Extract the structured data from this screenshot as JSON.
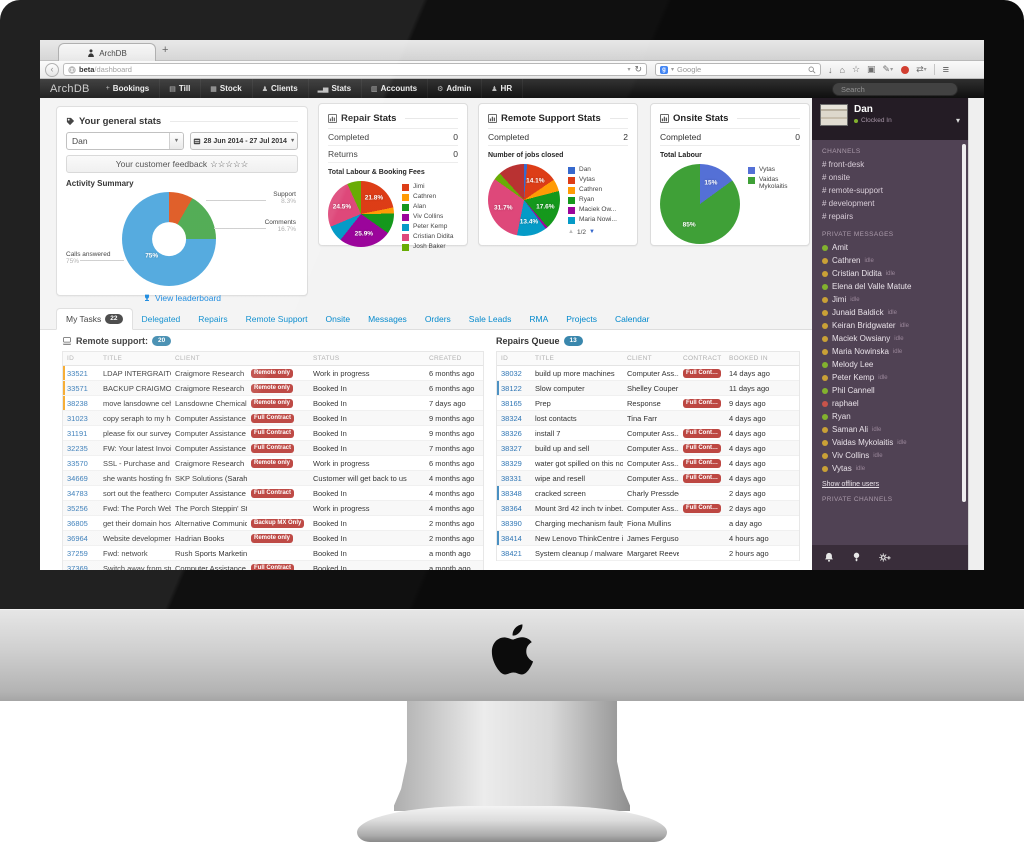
{
  "browser": {
    "tab_title": "ArchDB",
    "new_tab": "+",
    "url_domain": "beta",
    "url_path": "/dashboard",
    "search_engine": "Google"
  },
  "app_nav": {
    "brand": "ArchDB",
    "search_placeholder": "Search",
    "items": [
      {
        "label": "Bookings",
        "icon": "plus-icon",
        "glyph": "+"
      },
      {
        "label": "Till",
        "icon": "till-icon",
        "glyph": "▤"
      },
      {
        "label": "Stock",
        "icon": "stock-icon",
        "glyph": "▦"
      },
      {
        "label": "Clients",
        "icon": "clients-icon",
        "glyph": "♟"
      },
      {
        "label": "Stats",
        "icon": "stats-icon",
        "glyph": "▂▅"
      },
      {
        "label": "Accounts",
        "icon": "accounts-icon",
        "glyph": "▥"
      },
      {
        "label": "Admin",
        "icon": "admin-gears-icon",
        "glyph": "⚙"
      },
      {
        "label": "HR",
        "icon": "hr-icon",
        "glyph": "♟"
      }
    ]
  },
  "general_stats": {
    "title": "Your general stats",
    "user": "Dan",
    "date_range": "28 Jun 2014 - 27 Jul 2014",
    "feedback_label": "Your customer feedback",
    "stars": "☆☆☆☆☆",
    "activity_title": "Activity Summary",
    "leaderboard": "View leaderboard"
  },
  "repair_stats": {
    "title": "Repair Stats",
    "rows": [
      {
        "label": "Completed",
        "value": "0"
      },
      {
        "label": "Returns",
        "value": "0"
      }
    ],
    "chart_title": "Total Labour & Booking Fees"
  },
  "remote_stats": {
    "title": "Remote Support Stats",
    "rows": [
      {
        "label": "Completed",
        "value": "2"
      }
    ],
    "chart_title": "Number of jobs closed",
    "pagination": "1/2"
  },
  "onsite_stats": {
    "title": "Onsite Stats",
    "rows": [
      {
        "label": "Completed",
        "value": "0"
      }
    ],
    "chart_title": "Total Labour"
  },
  "chart_data": [
    {
      "id": "activity_summary",
      "type": "donut",
      "title": "Activity Summary",
      "slices": [
        {
          "label": "Support",
          "value": 8.3,
          "pct": "8.3%",
          "inner": "",
          "color": "#dd5016"
        },
        {
          "label": "Comments",
          "value": 16.7,
          "pct": "16.7%",
          "inner": "",
          "color": "#43a546"
        },
        {
          "label": "Calls answered",
          "value": 75,
          "pct": "75%",
          "inner": "75%",
          "color": "#45a3dc"
        }
      ]
    },
    {
      "id": "repair_fees",
      "type": "pie",
      "title": "Total Labour & Booking Fees",
      "slices": [
        {
          "label": "Jimi",
          "value": 21.8,
          "inner": "21.8%",
          "color": "#dc3912"
        },
        {
          "label": "Cathren",
          "value": 3.0,
          "inner": "",
          "color": "#ff9900"
        },
        {
          "label": "Alan",
          "value": 10.0,
          "inner": "",
          "color": "#109618"
        },
        {
          "label": "Viv Collins",
          "value": 25.9,
          "inner": "25.9%",
          "color": "#990099"
        },
        {
          "label": "Peter Kemp",
          "value": 8.0,
          "inner": "",
          "color": "#0099c6"
        },
        {
          "label": "Cristian Didita",
          "value": 24.5,
          "inner": "24.5%",
          "color": "#dd4477"
        },
        {
          "label": "Josh Baker",
          "value": 6.8,
          "inner": "",
          "color": "#66aa00"
        }
      ]
    },
    {
      "id": "remote_jobs_closed",
      "type": "pie",
      "title": "Number of jobs closed",
      "legend_visible_count": 6,
      "pagination": "1/2",
      "slices": [
        {
          "label": "Dan",
          "value": 1.4,
          "inner": "",
          "color": "#3366cc"
        },
        {
          "label": "Vytas",
          "value": 14.1,
          "inner": "14.1%",
          "color": "#dc3912"
        },
        {
          "label": "Cathren",
          "value": 5.5,
          "inner": "",
          "color": "#ff9900"
        },
        {
          "label": "Ryan",
          "value": 17.6,
          "inner": "17.6%",
          "color": "#109618"
        },
        {
          "label": "Maciek Ow...",
          "value": 1.1,
          "inner": "",
          "color": "#990099"
        },
        {
          "label": "Maria Nowi...",
          "value": 13.4,
          "inner": "13.4%",
          "color": "#0099c6"
        },
        {
          "label": "",
          "value": 31.7,
          "inner": "31.7%",
          "color": "#dd4477"
        },
        {
          "label": "",
          "value": 3.4,
          "inner": "",
          "color": "#66aa00"
        },
        {
          "label": "",
          "value": 11.8,
          "inner": "",
          "color": "#b82e2e"
        }
      ]
    },
    {
      "id": "onsite_labour",
      "type": "pie",
      "title": "Total Labour",
      "slices": [
        {
          "label": "Vytas",
          "value": 15,
          "inner": "15%",
          "color": "#5470d6"
        },
        {
          "label": "Vaidas Mykolaitis",
          "value": 85,
          "inner": "85%",
          "color": "#3fa037"
        }
      ]
    }
  ],
  "tabs": [
    {
      "label": "My Tasks",
      "badge": "22",
      "active": true
    },
    {
      "label": "Delegated"
    },
    {
      "label": "Repairs"
    },
    {
      "label": "Remote Support"
    },
    {
      "label": "Onsite"
    },
    {
      "label": "Messages"
    },
    {
      "label": "Orders"
    },
    {
      "label": "Sale Leads"
    },
    {
      "label": "RMA"
    },
    {
      "label": "Projects"
    },
    {
      "label": "Calendar"
    }
  ],
  "tables": {
    "remote_support": {
      "title": "Remote support:",
      "badge": "20",
      "columns": [
        "ID",
        "TITLE",
        "CLIENT",
        "",
        "STATUS",
        "CREATED"
      ],
      "rows": [
        {
          "id": "33521",
          "title": "LDAP INTERGRAITON",
          "client": "Craigmore Research",
          "badge": "Remote only",
          "status": "Work in progress",
          "created": "6 months ago",
          "accent": "orange"
        },
        {
          "id": "33571",
          "title": "BACKUP CRAIGMOR...",
          "client": "Craigmore Research",
          "badge": "Remote only",
          "status": "Booked In",
          "created": "6 months ago",
          "accent": "orange"
        },
        {
          "id": "38238",
          "title": "move lansdowne ceh...",
          "client": "Lansdowne Chemicals",
          "badge": "Remote only",
          "status": "Booked In",
          "created": "7 days ago",
          "accent": "orange"
        },
        {
          "id": "31023",
          "title": "copy seraph to my ho...",
          "client": "Computer Assistance",
          "badge": "Full Contract",
          "status": "Booked In",
          "created": "9 months ago"
        },
        {
          "id": "31191",
          "title": "please fix our survey ...",
          "client": "Computer Assistance",
          "badge": "Full Contract",
          "status": "Booked In",
          "created": "9 months ago"
        },
        {
          "id": "32235",
          "title": "FW: Your latest Invoic...",
          "client": "Computer Assistance",
          "badge": "Full Contract",
          "status": "Booked In",
          "created": "7 months ago"
        },
        {
          "id": "33570",
          "title": "SSL - Purchase and s...",
          "client": "Craigmore Research",
          "badge": "Remote only",
          "status": "Work in progress",
          "created": "6 months ago"
        },
        {
          "id": "34669",
          "title": "she wants hosting fro...",
          "client": "SKP Solutions (Sarah ...",
          "badge": "",
          "status": "Customer will get back to us",
          "created": "4 months ago"
        },
        {
          "id": "34783",
          "title": "sort out the feathercoi...",
          "client": "Computer Assistance",
          "badge": "Full Contract",
          "status": "Booked In",
          "created": "4 months ago"
        },
        {
          "id": "35256",
          "title": "Fwd: The Porch Webs...",
          "client": "The Porch Steppin' St...",
          "badge": "",
          "status": "Work in progress",
          "created": "4 months ago"
        },
        {
          "id": "36805",
          "title": "get their domain host...",
          "client": "Alternative Communic...",
          "badge": "Backup MX Only",
          "status": "Booked In",
          "created": "2 months ago"
        },
        {
          "id": "36964",
          "title": "Website development",
          "client": "Hadrian Books",
          "badge": "Remote only",
          "status": "Booked In",
          "created": "2 months ago"
        },
        {
          "id": "37259",
          "title": "Fwd: network",
          "client": "Rush Sports Marketin...",
          "badge": "",
          "status": "Booked In",
          "created": "a month ago"
        },
        {
          "id": "37369",
          "title": "Switch away from stri...",
          "client": "Computer Assistance",
          "badge": "Full Contract",
          "status": "Booked In",
          "created": "a month ago"
        },
        {
          "id": "",
          "title": "",
          "client": "",
          "badge": "Full Contract",
          "status": "",
          "created": ""
        }
      ]
    },
    "repairs_queue": {
      "title": "Repairs Queue",
      "badge": "13",
      "columns": [
        "ID",
        "TITLE",
        "CLIENT",
        "CONTRACT",
        "BOOKED IN"
      ],
      "rows": [
        {
          "id": "38032",
          "title": "build up more machines",
          "client": "Computer Ass...",
          "badge": "Full Contract",
          "created": "14 days ago"
        },
        {
          "id": "38122",
          "title": "Slow computer",
          "client": "Shelley Couper",
          "badge": "",
          "created": "11 days ago",
          "accent": "blue"
        },
        {
          "id": "38165",
          "title": "Prep",
          "client": "Response",
          "badge": "Full Contract",
          "created": "9 days ago"
        },
        {
          "id": "38324",
          "title": "lost contacts",
          "client": "Tina Farr",
          "badge": "",
          "created": "4 days ago"
        },
        {
          "id": "38326",
          "title": "install 7",
          "client": "Computer Ass...",
          "badge": "Full Contract",
          "created": "4 days ago"
        },
        {
          "id": "38327",
          "title": "build up and sell",
          "client": "Computer Ass...",
          "badge": "Full Contract",
          "created": "4 days ago"
        },
        {
          "id": "38329",
          "title": "water got spilled on this no...",
          "client": "Computer Ass...",
          "badge": "Full Contract",
          "created": "4 days ago"
        },
        {
          "id": "38331",
          "title": "wipe and resell",
          "client": "Computer Ass...",
          "badge": "Full Contract",
          "created": "4 days ago"
        },
        {
          "id": "38348",
          "title": "cracked screen",
          "client": "Charly Pressdee",
          "badge": "",
          "created": "2 days ago",
          "accent": "blue"
        },
        {
          "id": "38364",
          "title": "Mount 3rd 42 inch tv inbet...",
          "client": "Computer Ass...",
          "badge": "Full Contract",
          "created": "2 days ago"
        },
        {
          "id": "38390",
          "title": "Charging mechanism faulty",
          "client": "Fiona Mullins",
          "badge": "",
          "created": "a day ago"
        },
        {
          "id": "38414",
          "title": "New Lenovo ThinkCentre i...",
          "client": "James Ferguson",
          "badge": "",
          "created": "4 hours ago",
          "accent": "blue"
        },
        {
          "id": "38421",
          "title": "System cleanup / malware ...",
          "client": "Margaret Reeves",
          "badge": "",
          "created": "2 hours ago"
        }
      ]
    }
  },
  "sidebar": {
    "user": {
      "name": "Dan",
      "status": "Clocked In"
    },
    "channels_header": "CHANNELS",
    "channels": [
      {
        "name": "# front-desk"
      },
      {
        "name": "# onsite"
      },
      {
        "name": "# remote-support"
      },
      {
        "name": "# development"
      },
      {
        "name": "# repairs"
      }
    ],
    "pm_header": "PRIVATE MESSAGES",
    "members": [
      {
        "name": "Amit",
        "presence": "online",
        "suffix": ""
      },
      {
        "name": "Cathren",
        "presence": "idle",
        "suffix": "idle"
      },
      {
        "name": "Cristian Didita",
        "presence": "idle",
        "suffix": "idle"
      },
      {
        "name": "Elena del Valle Matute",
        "presence": "online",
        "suffix": ""
      },
      {
        "name": "Jimi",
        "presence": "idle",
        "suffix": "idle"
      },
      {
        "name": "Junaid Baldick",
        "presence": "idle",
        "suffix": "idle"
      },
      {
        "name": "Keiran Bridgwater",
        "presence": "idle",
        "suffix": "idle"
      },
      {
        "name": "Maciek Owsiany",
        "presence": "idle",
        "suffix": "idle"
      },
      {
        "name": "Maria Nowinska",
        "presence": "idle",
        "suffix": "idle"
      },
      {
        "name": "Melody Lee",
        "presence": "online",
        "suffix": ""
      },
      {
        "name": "Peter Kemp",
        "presence": "idle",
        "suffix": "idle"
      },
      {
        "name": "Phil Cannell",
        "presence": "online",
        "suffix": ""
      },
      {
        "name": "raphael",
        "presence": "dnd",
        "suffix": ""
      },
      {
        "name": "Ryan",
        "presence": "online",
        "suffix": ""
      },
      {
        "name": "Saman Ali",
        "presence": "idle",
        "suffix": "idle"
      },
      {
        "name": "Vaidas Mykolaitis",
        "presence": "idle",
        "suffix": "idle"
      },
      {
        "name": "Viv Collins",
        "presence": "idle",
        "suffix": "idle"
      },
      {
        "name": "Vytas",
        "presence": "idle",
        "suffix": "idle"
      }
    ],
    "show_offline": "Show offline users",
    "private_channels_header": "PRIVATE CHANNELS"
  }
}
